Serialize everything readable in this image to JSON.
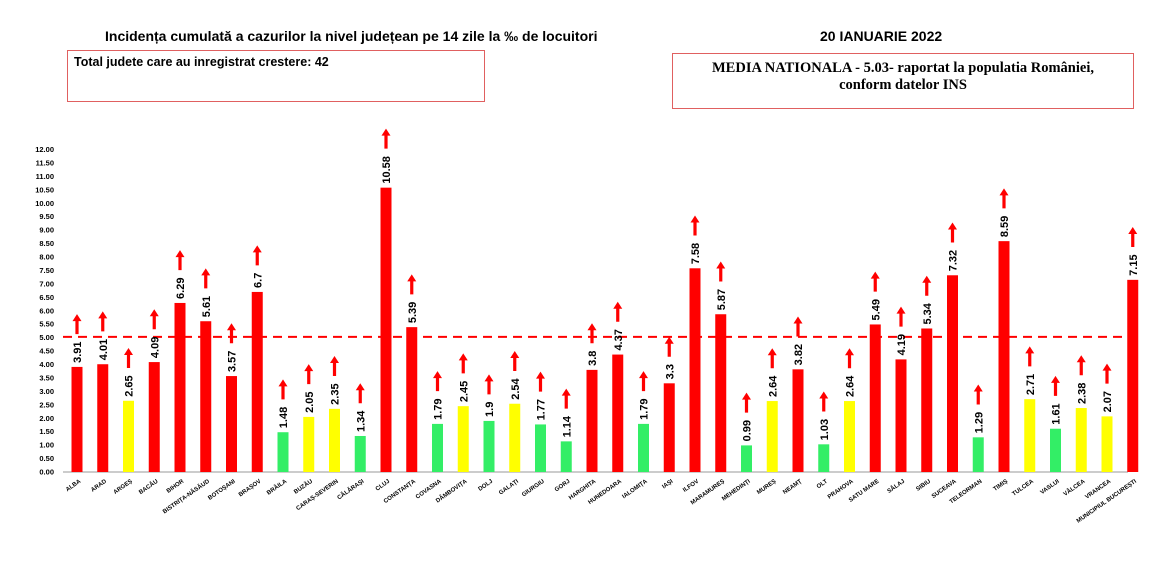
{
  "header": {
    "title": "Incidența cumulată a cazurilor la nivel județean pe 14 zile la ‰ de locuitori",
    "date": "20 IANUARIE 2022"
  },
  "boxes": {
    "total_judete": "Total judete care au inregistrat crestere: 42",
    "media_line1": "MEDIA NATIONALA - 5.03-  raportat la populatia României,",
    "media_line2": "conform datelor INS"
  },
  "colors": {
    "red": "#ff0000",
    "yellow": "#ffff00",
    "green": "#33ee66",
    "dashed_line": "#ff0000",
    "box_border": "#e06060"
  },
  "chart_data": {
    "type": "bar",
    "title": "Incidența cumulată a cazurilor la nivel județean pe 14 zile la ‰ de locuitori",
    "xlabel": "",
    "ylabel": "",
    "ylim": [
      0,
      12
    ],
    "yticks": [
      "0.00",
      "0.50",
      "1.00",
      "1.50",
      "2.00",
      "2.50",
      "3.00",
      "3.50",
      "4.00",
      "4.50",
      "5.00",
      "5.50",
      "6.00",
      "6.50",
      "7.00",
      "7.50",
      "8.00",
      "8.50",
      "9.00",
      "9.50",
      "10.00",
      "10.50",
      "11.00",
      "11.50",
      "12.00"
    ],
    "reference_line": {
      "label": "MEDIA NATIONALA",
      "value": 5.03
    },
    "categories": [
      "ALBA",
      "ARAD",
      "ARGEȘ",
      "BACĂU",
      "BIHOR",
      "BISTRIȚA-NĂSĂUD",
      "BOTOȘANI",
      "BRAȘOV",
      "BRĂILA",
      "BUZĂU",
      "CARAȘ-SEVERIN",
      "CĂLĂRAȘI",
      "CLUJ",
      "CONSTANȚA",
      "COVASNA",
      "DÂMBOVIȚA",
      "DOLJ",
      "GALAȚI",
      "GIURGIU",
      "GORJ",
      "HARGHITA",
      "HUNEDOARA",
      "IALOMIȚA",
      "IAȘI",
      "ILFOV",
      "MARAMUREȘ",
      "MEHEDINȚI",
      "MUREȘ",
      "NEAMȚ",
      "OLT",
      "PRAHOVA",
      "SATU MARE",
      "SĂLAJ",
      "SIBIU",
      "SUCEAVA",
      "TELEORMAN",
      "TIMIȘ",
      "TULCEA",
      "VASLUI",
      "VÂLCEA",
      "VRANCEA",
      "MUNICIPIUL BUCUREȘTI"
    ],
    "values": [
      3.91,
      4.01,
      2.65,
      4.09,
      6.29,
      5.61,
      3.57,
      6.7,
      1.48,
      2.05,
      2.35,
      1.34,
      10.58,
      5.39,
      1.79,
      2.45,
      1.9,
      2.54,
      1.77,
      1.14,
      3.8,
      4.37,
      1.79,
      3.3,
      7.58,
      5.87,
      0.99,
      2.64,
      3.82,
      1.03,
      2.64,
      5.49,
      4.19,
      5.34,
      7.32,
      1.29,
      8.59,
      2.71,
      1.61,
      2.38,
      2.07,
      7.15
    ],
    "labels": [
      "3.91",
      "4.01",
      "2.65",
      "4.09",
      "6.29",
      "5.61",
      "3.57",
      "6.7",
      "1.48",
      "2.05",
      "2.35",
      "1.34",
      "10.58",
      "5.39",
      "1.79",
      "2.45",
      "1.9",
      "2.54",
      "1.77",
      "1.14",
      "3.8",
      "4.37",
      "1.79",
      "3.3",
      "7.58",
      "5.87",
      "0.99",
      "2.64",
      "3.82",
      "1.03",
      "2.64",
      "5.49",
      "4.19",
      "5.34",
      "7.32",
      "1.29",
      "8.59",
      "2.71",
      "1.61",
      "2.38",
      "2.07",
      "7.15"
    ],
    "bar_colors": [
      "red",
      "red",
      "yellow",
      "red",
      "red",
      "red",
      "red",
      "red",
      "green",
      "yellow",
      "yellow",
      "green",
      "red",
      "red",
      "green",
      "yellow",
      "green",
      "yellow",
      "green",
      "green",
      "red",
      "red",
      "green",
      "red",
      "red",
      "red",
      "green",
      "yellow",
      "red",
      "green",
      "yellow",
      "red",
      "red",
      "red",
      "red",
      "green",
      "red",
      "yellow",
      "green",
      "yellow",
      "yellow",
      "red"
    ],
    "trend": "up",
    "grid": false,
    "legend": "none"
  }
}
